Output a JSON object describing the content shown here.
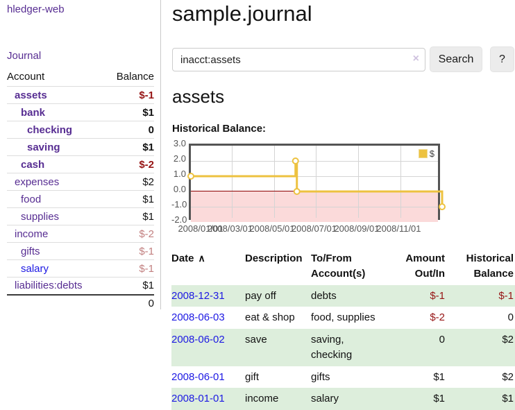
{
  "brand": "hledger-web",
  "nav": {
    "journal": "Journal"
  },
  "sidebar": {
    "headers": {
      "account": "Account",
      "balance": "Balance"
    },
    "accounts": [
      {
        "name": "assets",
        "depth": 1,
        "in_account": true,
        "balance": "$-1",
        "negative": "strong"
      },
      {
        "name": "bank",
        "depth": 2,
        "in_account": true,
        "balance": "$1",
        "negative": "none"
      },
      {
        "name": "checking",
        "depth": 3,
        "in_account": true,
        "balance": "0",
        "negative": "none"
      },
      {
        "name": "saving",
        "depth": 3,
        "in_account": true,
        "balance": "$1",
        "negative": "none"
      },
      {
        "name": "cash",
        "depth": 2,
        "in_account": true,
        "balance": "$-2",
        "negative": "strong"
      },
      {
        "name": "expenses",
        "depth": 1,
        "in_account": false,
        "balance": "$2",
        "negative": "none"
      },
      {
        "name": "food",
        "depth": 2,
        "in_account": false,
        "balance": "$1",
        "negative": "none"
      },
      {
        "name": "supplies",
        "depth": 2,
        "in_account": false,
        "balance": "$1",
        "negative": "none"
      },
      {
        "name": "income",
        "depth": 1,
        "in_account": false,
        "balance": "$-2",
        "negative": "muted"
      },
      {
        "name": "gifts",
        "depth": 2,
        "in_account": false,
        "balance": "$-1",
        "negative": "muted"
      },
      {
        "name": "salary",
        "depth": 2,
        "in_account": false,
        "balance": "$-1",
        "negative": "muted",
        "link_style": "unvisited"
      },
      {
        "name": "liabilities:debts",
        "depth": 1,
        "in_account": false,
        "balance": "$1",
        "negative": "none"
      }
    ],
    "total": "0"
  },
  "main": {
    "title": "sample.journal",
    "search": {
      "value": "inacct:assets",
      "clear_icon": "×",
      "search_button": "Search",
      "help_button": "?"
    },
    "account_heading": "assets",
    "section_label": "Historical Balance:"
  },
  "chart_data": {
    "type": "line",
    "step": true,
    "title": "Historical Balance:",
    "legend": "$",
    "legend_position": "top-right",
    "series": [
      {
        "name": "$",
        "points": [
          {
            "date": "2008-01-01",
            "day": 0,
            "value": 1
          },
          {
            "date": "2008-06-01",
            "day": 152,
            "value": 2
          },
          {
            "date": "2008-06-03",
            "day": 154,
            "value": 0
          },
          {
            "date": "2008-12-31",
            "day": 365,
            "value": -1
          }
        ]
      }
    ],
    "x_range_days": 365,
    "x_ticks": [
      {
        "label": "2008/01/01",
        "day": 0
      },
      {
        "label": "2008/03/01",
        "day": 60
      },
      {
        "label": "2008/05/01",
        "day": 121
      },
      {
        "label": "2008/07/01",
        "day": 182
      },
      {
        "label": "2008/09/01",
        "day": 244
      },
      {
        "label": "2008/11/01",
        "day": 305
      }
    ],
    "y_ticks": [
      "3.0",
      "2.0",
      "1.0",
      "0.0",
      "-1.0",
      "-2.0"
    ],
    "ylim": [
      -2,
      3
    ],
    "grid": true,
    "colors": {
      "line": "#edc240",
      "marker_fill": "#ffffff",
      "negative_fill": "#fbdada",
      "zero_line": "#8b0000",
      "grid": "#d4d4d4",
      "border": "#545454"
    }
  },
  "register": {
    "headers": {
      "date": "Date",
      "sort_icon": "∧",
      "description": "Description",
      "tofrom": "To/From Account(s)",
      "amount": "Amount Out/In",
      "balance": "Historical Balance"
    },
    "rows": [
      {
        "date": "2008-12-31",
        "description": "pay off",
        "accounts": "debts",
        "amount": "$-1",
        "amount_negative": true,
        "balance": "$-1",
        "balance_negative": true
      },
      {
        "date": "2008-06-03",
        "description": "eat & shop",
        "accounts": "food, supplies",
        "amount": "$-2",
        "amount_negative": true,
        "balance": "0",
        "balance_negative": false
      },
      {
        "date": "2008-06-02",
        "description": "save",
        "accounts": "saving, checking",
        "amount": "0",
        "amount_negative": false,
        "balance": "$2",
        "balance_negative": false
      },
      {
        "date": "2008-06-01",
        "description": "gift",
        "accounts": "gifts",
        "amount": "$1",
        "amount_negative": false,
        "balance": "$2",
        "balance_negative": false
      },
      {
        "date": "2008-01-01",
        "description": "income",
        "accounts": "salary",
        "amount": "$1",
        "amount_negative": false,
        "balance": "$1",
        "balance_negative": false
      }
    ]
  }
}
